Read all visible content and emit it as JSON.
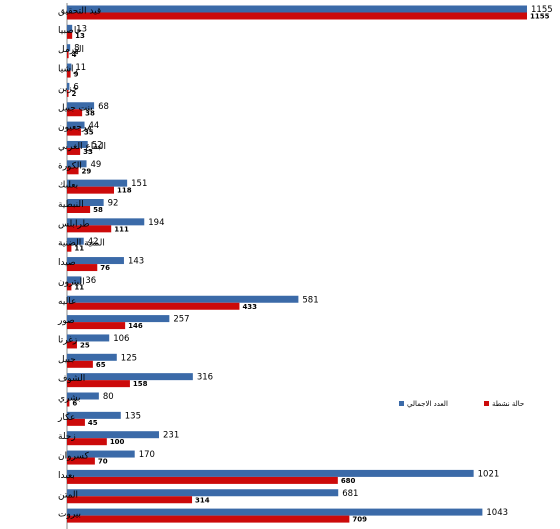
{
  "chart_data": {
    "type": "bar",
    "orientation": "horizontal",
    "categories": [
      "قيد التحقيق",
      "حاصبيا",
      "الهرمل",
      "راشيا",
      "جزين",
      "بنت جبيل",
      "مرجعيون",
      "البقاع الغربي",
      "الكورة",
      "بعلبك",
      "النبطية",
      "طرابلس",
      "المنية الضنية",
      "صيدا",
      "البترون",
      "عاليه",
      "صور",
      "زغرتا",
      "جبيل",
      "الشوف",
      "بشري",
      "عكار",
      "زحلة",
      "كسروان",
      "بعبدا",
      "المتن",
      "بيروت"
    ],
    "series": [
      {
        "name": "العدد الاجمالي",
        "color": "#3b6aa8",
        "values": [
          1155,
          13,
          8,
          11,
          6,
          68,
          44,
          52,
          49,
          151,
          92,
          194,
          42,
          143,
          36,
          581,
          257,
          106,
          125,
          316,
          80,
          135,
          231,
          170,
          1021,
          681,
          1043
        ]
      },
      {
        "name": "حالة نشطة",
        "color": "#cc0a0a",
        "values": [
          1155,
          13,
          4,
          9,
          2,
          38,
          35,
          33,
          29,
          118,
          58,
          111,
          11,
          76,
          11,
          433,
          146,
          25,
          65,
          158,
          6,
          45,
          100,
          70,
          680,
          314,
          709
        ]
      }
    ],
    "xlim": [
      0,
      1155
    ],
    "grid": false,
    "legend_position": "right"
  }
}
